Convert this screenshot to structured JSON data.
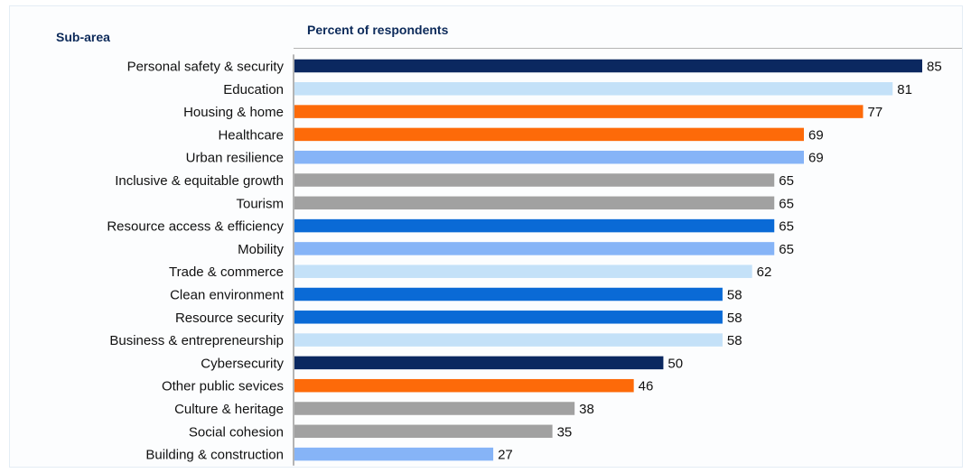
{
  "headers": {
    "sub_area": "Sub-area",
    "percent": "Percent of respondents"
  },
  "colors": {
    "navy": "#0b2860",
    "light_blue": "#c4e1f8",
    "orange": "#fd6a09",
    "periwinkle": "#86b4f7",
    "gray": "#a1a1a1",
    "blue": "#0a6ad6"
  },
  "chart_data": {
    "type": "bar",
    "orientation": "horizontal",
    "title": "",
    "xlabel": "Percent of respondents",
    "ylabel": "Sub-area",
    "xlim": [
      0,
      85
    ],
    "grid": false,
    "legend": "none",
    "categories": [
      "Personal safety & security",
      "Education",
      "Housing & home",
      "Healthcare",
      "Urban resilience",
      "Inclusive & equitable growth",
      "Tourism",
      "Resource access & efficiency",
      "Mobility",
      "Trade & commerce",
      "Clean environment",
      "Resource security",
      "Business & entrepreneurship",
      "Cybersecurity",
      "Other public sevices",
      "Culture & heritage",
      "Social cohesion",
      "Building & construction"
    ],
    "values": [
      85,
      81,
      77,
      69,
      69,
      65,
      65,
      65,
      65,
      62,
      58,
      58,
      58,
      50,
      46,
      38,
      35,
      27
    ],
    "bar_colors": [
      "#0b2860",
      "#c4e1f8",
      "#fd6a09",
      "#fd6a09",
      "#86b4f7",
      "#a1a1a1",
      "#a1a1a1",
      "#0a6ad6",
      "#86b4f7",
      "#c4e1f8",
      "#0a6ad6",
      "#0a6ad6",
      "#c4e1f8",
      "#0b2860",
      "#fd6a09",
      "#a1a1a1",
      "#a1a1a1",
      "#86b4f7"
    ]
  }
}
